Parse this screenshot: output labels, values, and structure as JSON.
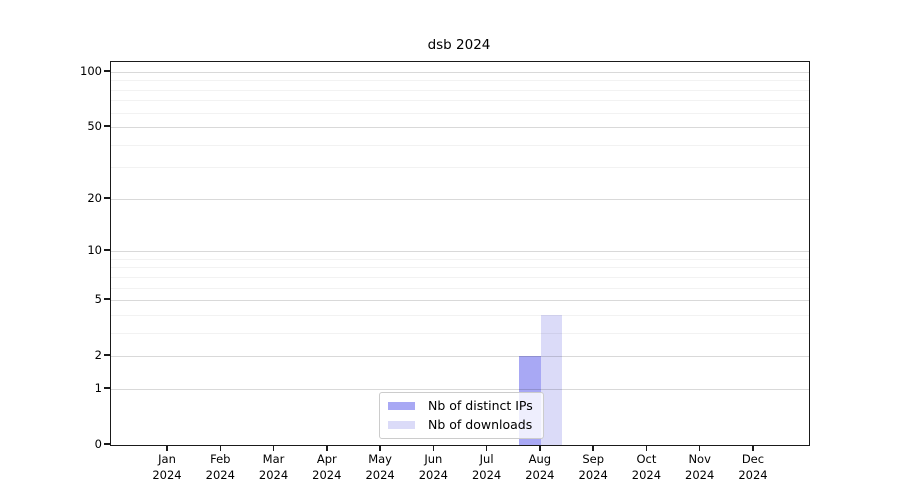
{
  "chart_data": {
    "type": "bar",
    "title": "dsb 2024",
    "categories": [
      "Jan 2024",
      "Feb 2024",
      "Mar 2024",
      "Apr 2024",
      "May 2024",
      "Jun 2024",
      "Jul 2024",
      "Aug 2024",
      "Sep 2024",
      "Oct 2024",
      "Nov 2024",
      "Dec 2024"
    ],
    "series": [
      {
        "name": "Nb of distinct IPs",
        "color": "#a8a8f4",
        "values": [
          0,
          0,
          0,
          0,
          0,
          0,
          0,
          2,
          0,
          0,
          0,
          0
        ]
      },
      {
        "name": "Nb of downloads",
        "color": "#dbdbf8",
        "values": [
          0,
          0,
          0,
          0,
          0,
          0,
          0,
          4,
          0,
          0,
          0,
          0
        ]
      }
    ],
    "xlabel": "",
    "ylabel": "",
    "y_scale": "log1p",
    "y_ticks": [
      0,
      1,
      2,
      5,
      10,
      20,
      50,
      100
    ],
    "y_minor_ticks": [
      3,
      4,
      6,
      7,
      8,
      9,
      30,
      40,
      60,
      70,
      80,
      90
    ],
    "ylim": [
      0,
      113
    ],
    "grid": true,
    "legend_position": "lower center"
  }
}
